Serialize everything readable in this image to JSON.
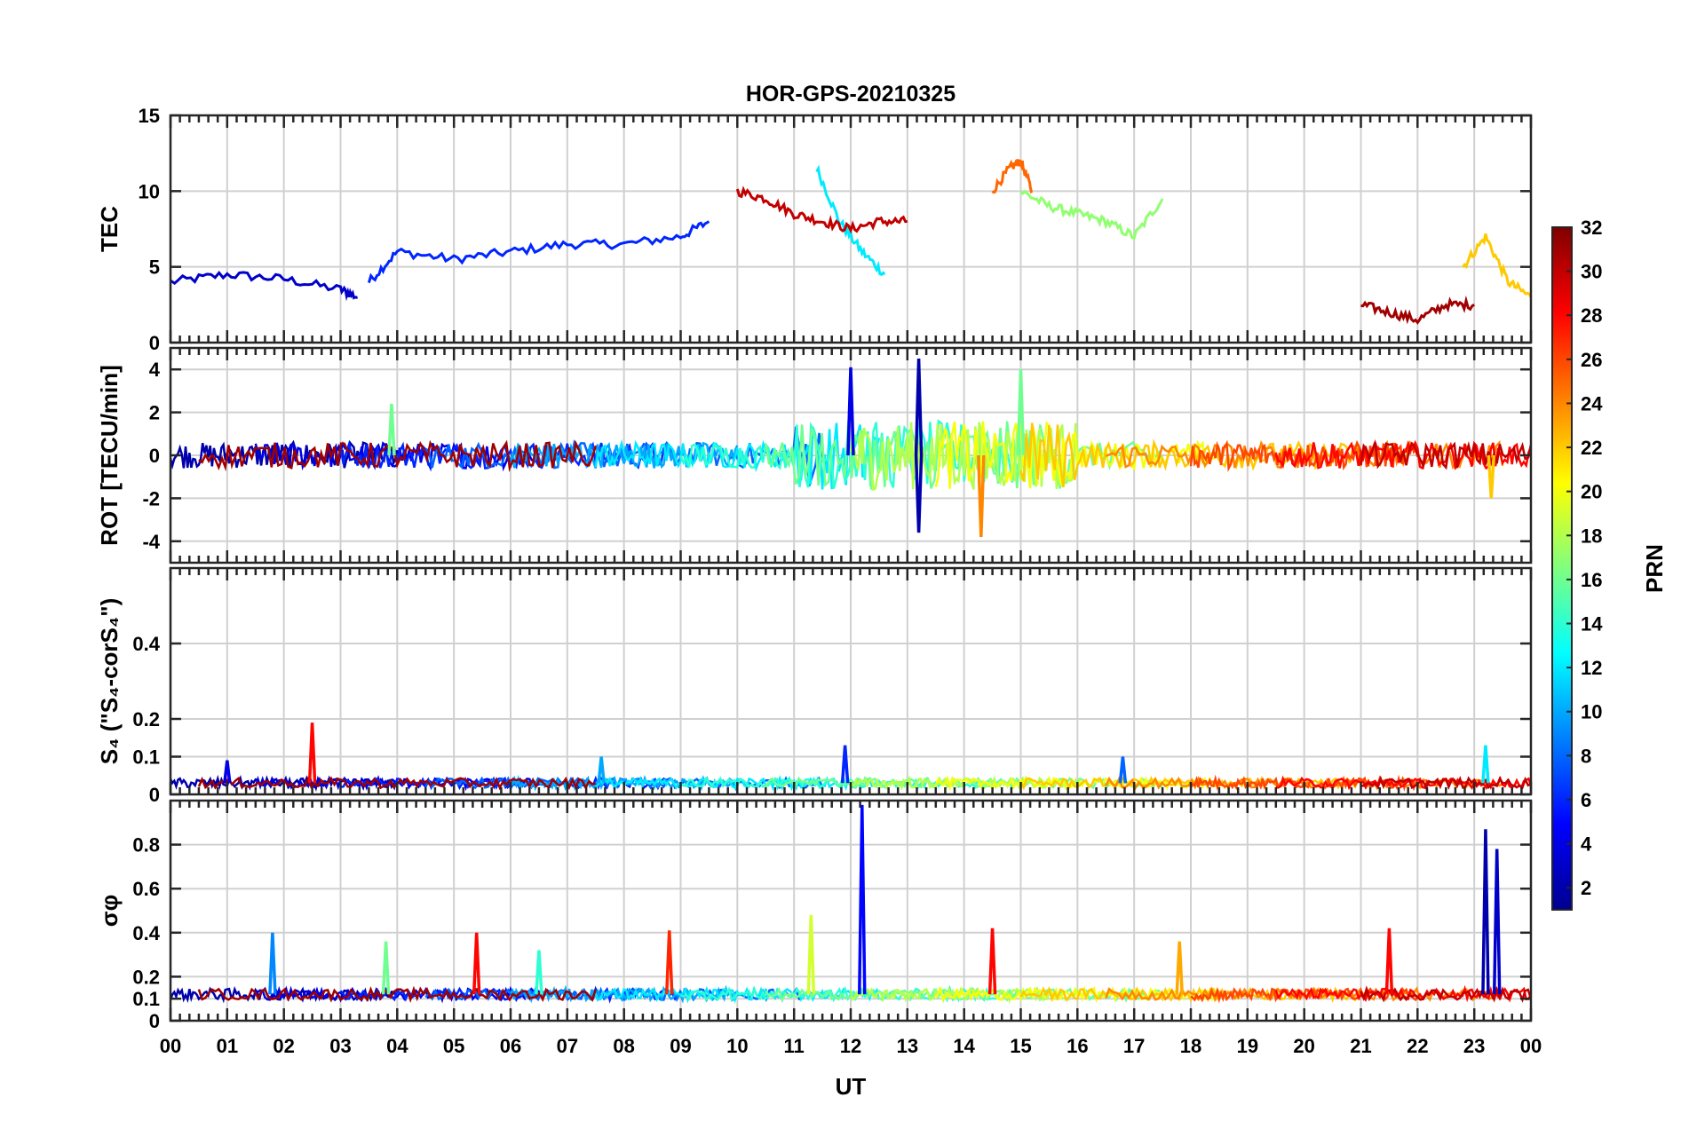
{
  "title": "HOR-GPS-20210325",
  "xlabel": "UT",
  "x_ticks": [
    "00",
    "01",
    "02",
    "03",
    "04",
    "05",
    "06",
    "07",
    "08",
    "09",
    "10",
    "11",
    "12",
    "13",
    "14",
    "15",
    "16",
    "17",
    "18",
    "19",
    "20",
    "21",
    "22",
    "23",
    "00"
  ],
  "colorbar": {
    "label": "PRN",
    "ticks": [
      "2",
      "4",
      "6",
      "8",
      "10",
      "12",
      "14",
      "16",
      "18",
      "20",
      "22",
      "24",
      "26",
      "28",
      "30",
      "32"
    ],
    "range": [
      1,
      32
    ],
    "colormap": "jet",
    "colors": [
      "#00008f",
      "#0000ff",
      "#007fff",
      "#00ffff",
      "#7fff7f",
      "#ffff00",
      "#ff7f00",
      "#ff0000",
      "#800000"
    ]
  },
  "chart_data": [
    {
      "type": "line",
      "panel": "TEC",
      "ylabel": "TEC",
      "ylim": [
        0,
        15
      ],
      "yticks": [
        "0",
        "5",
        "10",
        "15"
      ],
      "xlim": [
        0,
        24
      ],
      "grid": true,
      "series_note": "one trace per GPS PRN 1-32, colored by PRN",
      "series": [
        {
          "prn": 3,
          "x": [
            0,
            1,
            2,
            3,
            3.3
          ],
          "y": [
            4,
            4.5,
            4.2,
            3.5,
            3
          ]
        },
        {
          "prn": 6,
          "x": [
            3.5,
            4,
            5,
            6,
            7,
            8,
            9,
            9.5
          ],
          "y": [
            4,
            6,
            5.5,
            6,
            6.5,
            6.5,
            7,
            8
          ]
        },
        {
          "prn": 12,
          "x": [
            11.4,
            11.8,
            12.2,
            12.6
          ],
          "y": [
            11.5,
            8,
            6,
            4.5
          ]
        },
        {
          "prn": 17,
          "x": [
            15,
            15.5,
            16,
            16.5,
            17,
            17.5
          ],
          "y": [
            10,
            9,
            8.5,
            8,
            7,
            9.5
          ]
        },
        {
          "prn": 22,
          "x": [
            22.8,
            23.2,
            23.6,
            24
          ],
          "y": [
            5,
            7,
            4,
            3
          ]
        },
        {
          "prn": 25,
          "x": [
            14.5,
            14.8,
            15,
            15.2
          ],
          "y": [
            10,
            11.5,
            12,
            10
          ]
        },
        {
          "prn": 30,
          "x": [
            10,
            10.5,
            11,
            11.5,
            12,
            12.5,
            13
          ],
          "y": [
            10,
            9.5,
            8.5,
            8,
            7.5,
            8,
            8
          ]
        },
        {
          "prn": 31,
          "x": [
            21,
            21.5,
            22,
            22.5,
            23
          ],
          "y": [
            2.5,
            2,
            1.5,
            2.5,
            2.5
          ]
        }
      ]
    },
    {
      "type": "line",
      "panel": "ROT",
      "ylabel": "ROT [TECU/min]",
      "ylim": [
        -5,
        5
      ],
      "yticks": [
        "-4",
        "-2",
        "0",
        "2",
        "4"
      ],
      "xlim": [
        0,
        24
      ],
      "grid": true,
      "peaks": [
        {
          "prn": 2,
          "x": 13.2,
          "y": 4.5
        },
        {
          "prn": 2,
          "x": 13.2,
          "y": -3.6
        },
        {
          "prn": 4,
          "x": 12.0,
          "y": 4.1
        },
        {
          "prn": 16,
          "x": 15.0,
          "y": 4.0
        },
        {
          "prn": 16,
          "x": 3.9,
          "y": 2.4
        },
        {
          "prn": 24,
          "x": 14.3,
          "y": -3.8
        },
        {
          "prn": 22,
          "x": 23.3,
          "y": -2.0
        }
      ]
    },
    {
      "type": "line",
      "panel": "S4",
      "ylabel": "S₄ (\"S₄-corS₄\")",
      "ylim": [
        0,
        0.6
      ],
      "yticks": [
        "0",
        "0.1",
        "0.2",
        "0.4"
      ],
      "xlim": [
        0,
        24
      ],
      "grid": true,
      "baseline": 0.03,
      "peaks": [
        {
          "prn": 28,
          "x": 2.5,
          "y": 0.19
        },
        {
          "prn": 4,
          "x": 1.0,
          "y": 0.09
        },
        {
          "prn": 6,
          "x": 11.9,
          "y": 0.13
        },
        {
          "prn": 8,
          "x": 16.8,
          "y": 0.1
        },
        {
          "prn": 12,
          "x": 23.2,
          "y": 0.13
        },
        {
          "prn": 10,
          "x": 7.6,
          "y": 0.1
        }
      ]
    },
    {
      "type": "line",
      "panel": "sigma_phi",
      "ylabel": "σφ",
      "ylim": [
        0,
        1
      ],
      "yticks": [
        "0",
        "0.1",
        "0.2",
        "0.4",
        "0.6",
        "0.8"
      ],
      "xlim": [
        0,
        24
      ],
      "grid": true,
      "baseline": 0.12,
      "peaks": [
        {
          "prn": 5,
          "x": 12.2,
          "y": 0.98
        },
        {
          "prn": 2,
          "x": 23.2,
          "y": 0.87
        },
        {
          "prn": 3,
          "x": 23.4,
          "y": 0.78
        },
        {
          "prn": 19,
          "x": 11.3,
          "y": 0.48
        },
        {
          "prn": 28,
          "x": 14.5,
          "y": 0.42
        },
        {
          "prn": 28,
          "x": 21.5,
          "y": 0.42
        },
        {
          "prn": 27,
          "x": 8.8,
          "y": 0.41
        },
        {
          "prn": 28,
          "x": 5.4,
          "y": 0.4
        },
        {
          "prn": 9,
          "x": 1.8,
          "y": 0.4
        },
        {
          "prn": 16,
          "x": 3.8,
          "y": 0.36
        },
        {
          "prn": 14,
          "x": 6.5,
          "y": 0.32
        },
        {
          "prn": 23,
          "x": 17.8,
          "y": 0.36
        }
      ]
    }
  ]
}
